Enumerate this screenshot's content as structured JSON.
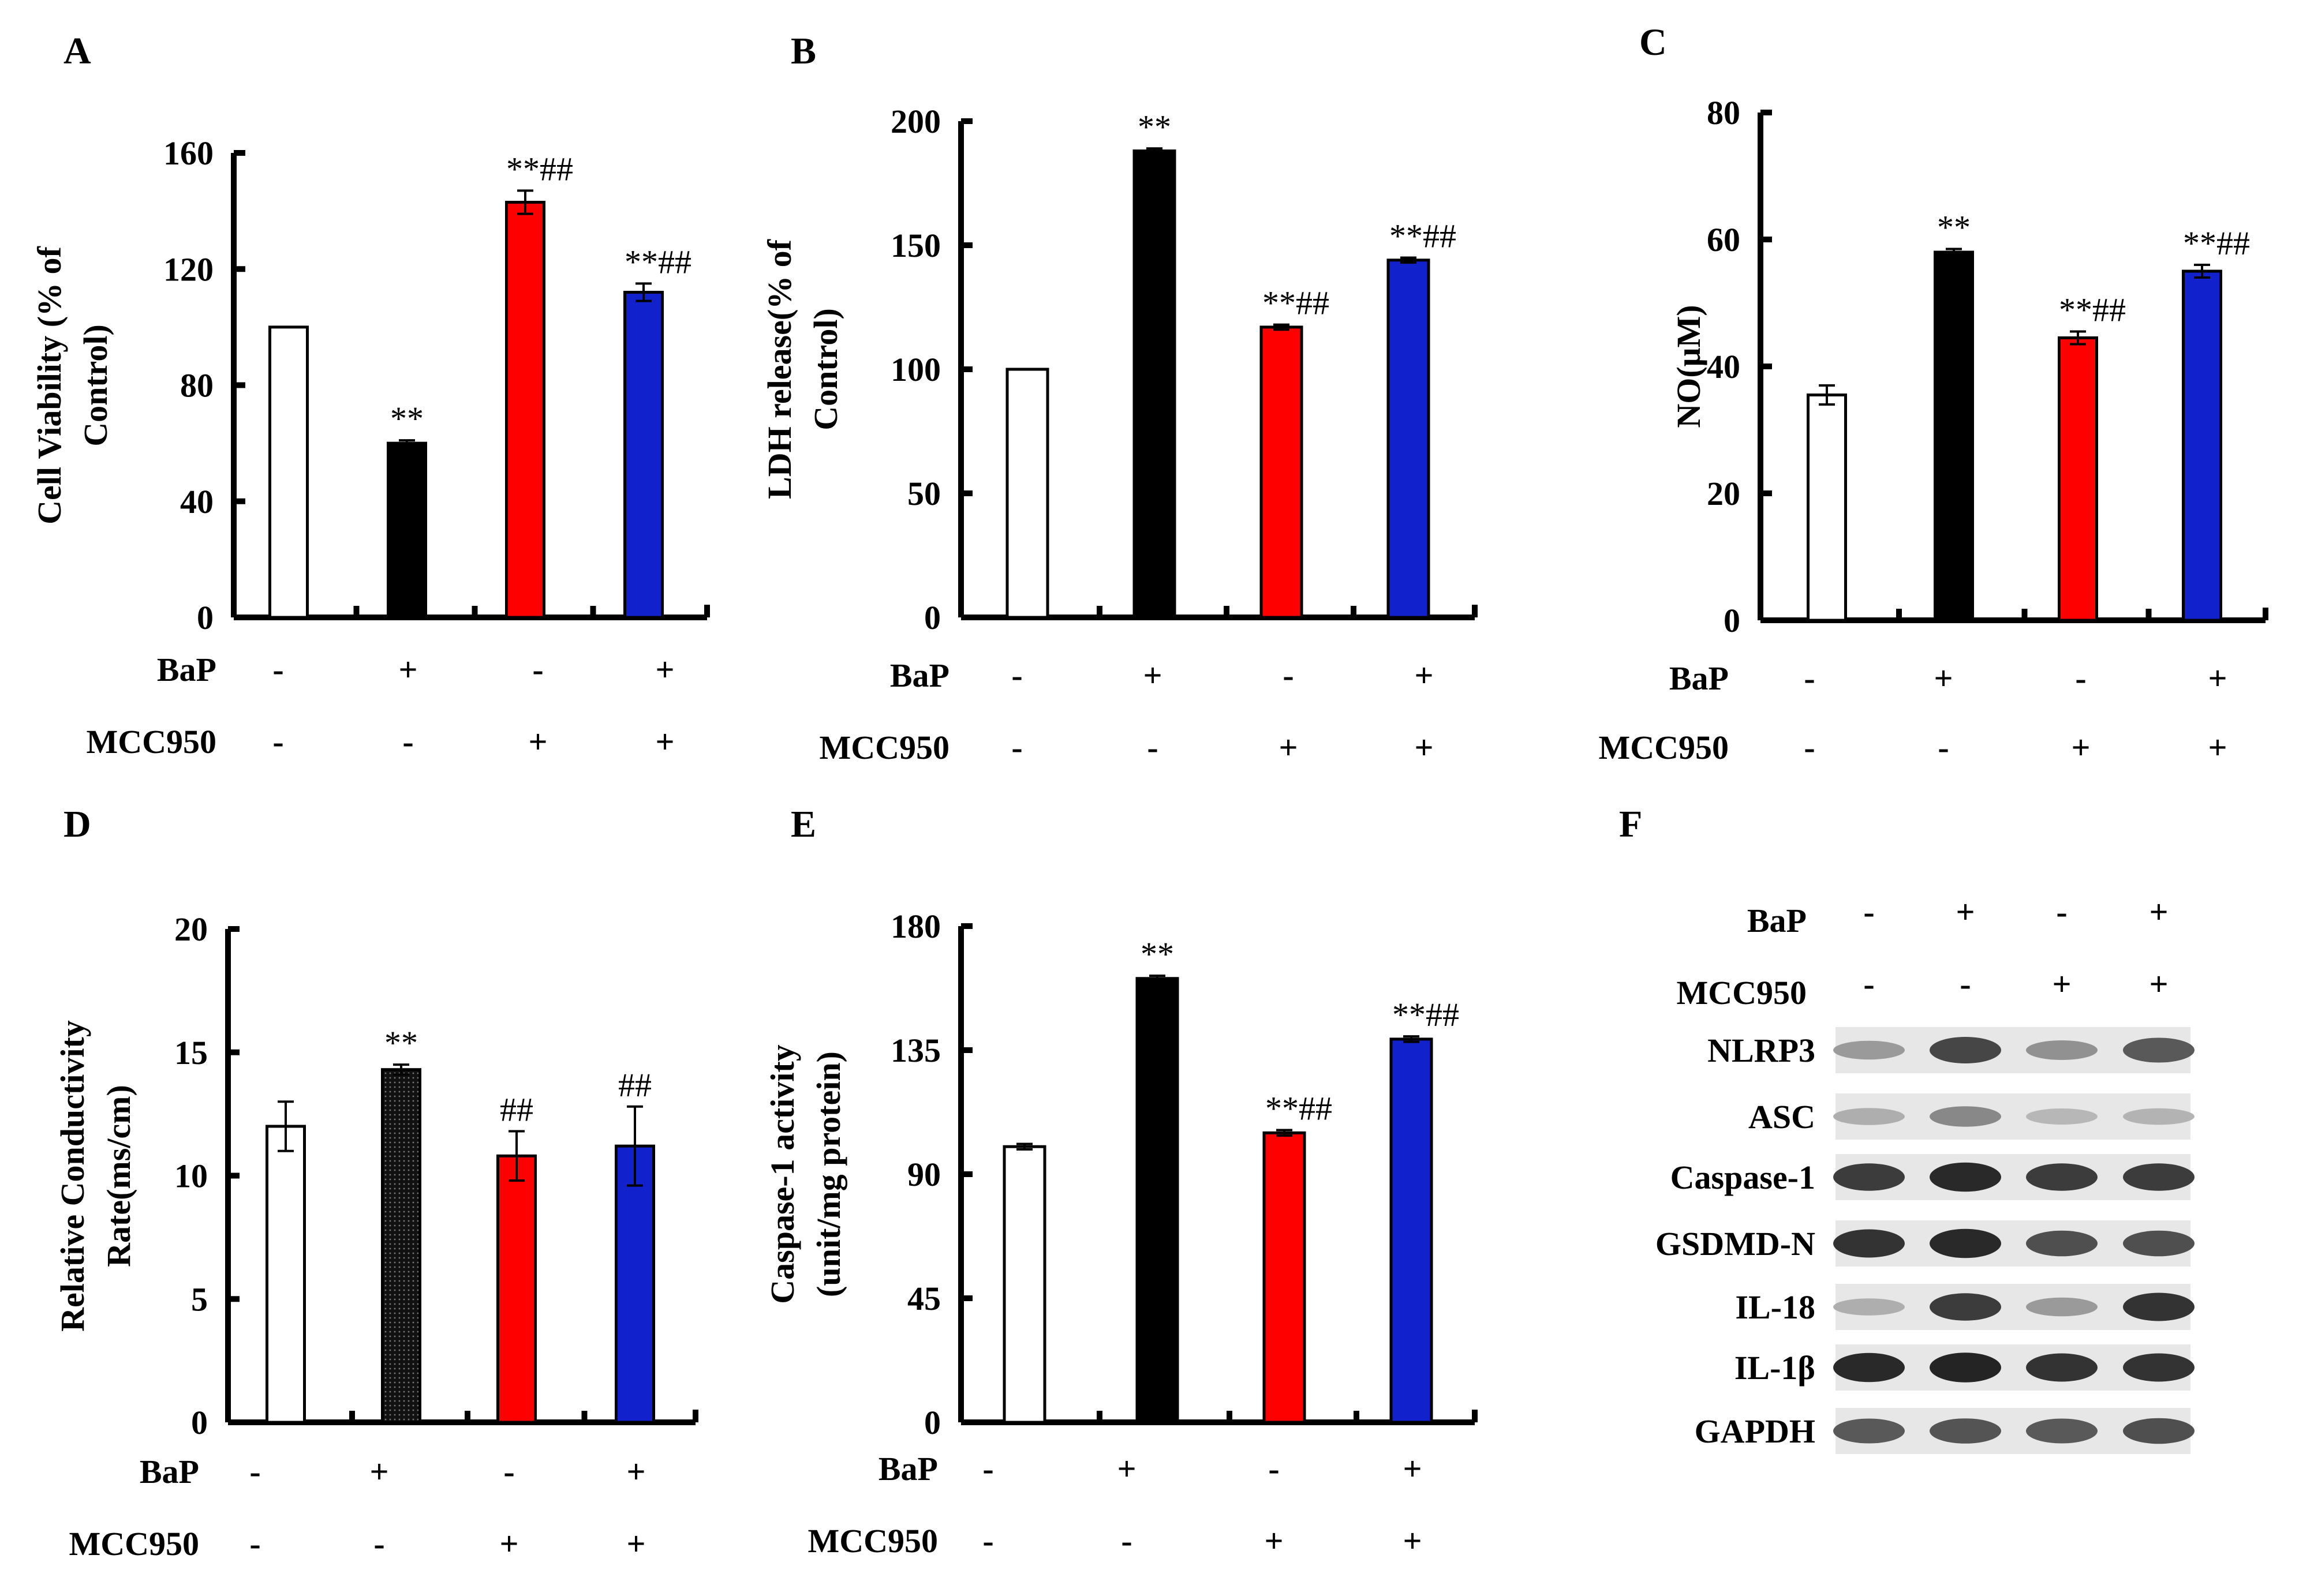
{
  "chart_data": [
    {
      "panel": "A",
      "type": "bar",
      "ylabel": [
        "Cell Viability (% of",
        "Control)"
      ],
      "ylim": [
        0,
        160
      ],
      "yticks": [
        "0",
        "40",
        "80",
        "120",
        "160"
      ],
      "values": [
        100,
        60,
        143,
        112
      ],
      "errors": [
        0,
        1,
        4,
        3
      ],
      "colors": [
        "#ffffff",
        "#000000",
        "#ff0000",
        "#1122cc"
      ],
      "significance": [
        "",
        "**",
        "**##",
        "**##"
      ],
      "treatments": [
        {
          "name": "BaP",
          "signs": [
            "-",
            "+",
            "-",
            "+"
          ]
        },
        {
          "name": "MCC950",
          "signs": [
            "-",
            "-",
            "+",
            "+"
          ]
        }
      ]
    },
    {
      "panel": "B",
      "type": "bar",
      "ylabel": [
        "LDH release(% of",
        "Control)"
      ],
      "ylim": [
        0,
        200
      ],
      "yticks": [
        "0",
        "50",
        "100",
        "150",
        "200"
      ],
      "values": [
        100,
        188,
        117,
        144
      ],
      "errors": [
        0,
        1,
        1,
        1
      ],
      "colors": [
        "#ffffff",
        "#000000",
        "#ff0000",
        "#1122cc"
      ],
      "significance": [
        "",
        "**",
        "**##",
        "**##"
      ],
      "treatments": [
        {
          "name": "BaP",
          "signs": [
            "-",
            "+",
            "-",
            "+"
          ]
        },
        {
          "name": "MCC950",
          "signs": [
            "-",
            "-",
            "+",
            "+"
          ]
        }
      ]
    },
    {
      "panel": "C",
      "type": "bar",
      "ylabel": [
        "NO(μM)"
      ],
      "ylim": [
        0,
        80
      ],
      "yticks": [
        "0",
        "20",
        "40",
        "60",
        "80"
      ],
      "values": [
        35.5,
        58,
        44.5,
        55
      ],
      "errors": [
        1.5,
        0.5,
        1,
        1
      ],
      "colors": [
        "#ffffff",
        "#000000",
        "#ff0000",
        "#1122cc"
      ],
      "significance": [
        "",
        "**",
        "**##",
        "**##"
      ],
      "treatments": [
        {
          "name": "BaP",
          "signs": [
            "-",
            "+",
            "-",
            "+"
          ]
        },
        {
          "name": "MCC950",
          "signs": [
            "-",
            "-",
            "+",
            "+"
          ]
        }
      ]
    },
    {
      "panel": "D",
      "type": "bar",
      "ylabel": [
        "Relative Conductivity",
        "Rate(ms/cm)"
      ],
      "ylim": [
        0,
        20
      ],
      "yticks": [
        "0",
        "5",
        "10",
        "15",
        "20"
      ],
      "values": [
        12,
        14.3,
        10.8,
        11.2
      ],
      "errors": [
        1,
        0.2,
        1,
        1.6
      ],
      "colors": [
        "#ffffff",
        "#111111",
        "#ff0000",
        "#1122cc"
      ],
      "significance": [
        "",
        "**",
        "##",
        "##"
      ],
      "treatments": [
        {
          "name": "BaP",
          "signs": [
            "-",
            "+",
            "-",
            "+"
          ]
        },
        {
          "name": "MCC950",
          "signs": [
            "-",
            "-",
            "+",
            "+"
          ]
        }
      ]
    },
    {
      "panel": "E",
      "type": "bar",
      "ylabel": [
        "Caspase-1 activity",
        "(unit/mg protein)"
      ],
      "ylim": [
        0,
        180
      ],
      "yticks": [
        "0",
        "45",
        "90",
        "135",
        "180"
      ],
      "values": [
        100,
        161,
        105,
        139
      ],
      "errors": [
        1,
        1,
        1,
        1
      ],
      "colors": [
        "#ffffff",
        "#000000",
        "#ff0000",
        "#1122cc"
      ],
      "significance": [
        "",
        "**",
        "**##",
        "**##"
      ],
      "treatments": [
        {
          "name": "BaP",
          "signs": [
            "-",
            "+",
            "-",
            "+"
          ]
        },
        {
          "name": "MCC950",
          "signs": [
            "-",
            "-",
            "+",
            "+"
          ]
        }
      ]
    }
  ],
  "western_blot": {
    "panel": "F",
    "treatments": [
      {
        "name": "BaP",
        "signs": [
          "-",
          "+",
          "-",
          "+"
        ]
      },
      {
        "name": "MCC950",
        "signs": [
          "-",
          "-",
          "+",
          "+"
        ]
      }
    ],
    "bands": [
      {
        "name": "NLRP3",
        "intensity": [
          0.35,
          0.8,
          0.4,
          0.7
        ]
      },
      {
        "name": "ASC",
        "intensity": [
          0.25,
          0.45,
          0.2,
          0.22
        ]
      },
      {
        "name": "Caspase-1",
        "intensity": [
          0.85,
          0.95,
          0.85,
          0.85
        ]
      },
      {
        "name": "GSDMD-N",
        "intensity": [
          0.9,
          0.95,
          0.75,
          0.75
        ]
      },
      {
        "name": "IL-18",
        "intensity": [
          0.25,
          0.85,
          0.35,
          0.9
        ]
      },
      {
        "name": "IL-1β",
        "intensity": [
          0.95,
          0.98,
          0.9,
          0.9
        ]
      },
      {
        "name": "GAPDH",
        "intensity": [
          0.7,
          0.72,
          0.7,
          0.75
        ]
      }
    ]
  }
}
